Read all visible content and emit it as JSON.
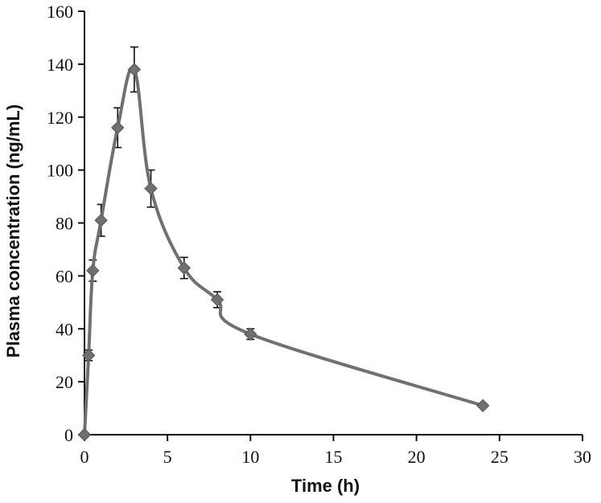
{
  "chart_data": {
    "type": "line",
    "xlabel": "Time (h)",
    "ylabel": "Plasma concentration (ng/mL)",
    "xlim": [
      0,
      30
    ],
    "ylim": [
      0,
      160
    ],
    "xticks": [
      0,
      5,
      10,
      15,
      20,
      25,
      30
    ],
    "yticks": [
      0,
      20,
      40,
      60,
      80,
      100,
      120,
      140,
      160
    ],
    "grid": false,
    "legend": "none",
    "series": [
      {
        "color": "#707070",
        "marker": "diamond",
        "x": [
          0,
          0.25,
          0.5,
          1,
          2,
          3,
          4,
          6,
          8,
          10,
          24
        ],
        "y": [
          0,
          30,
          62,
          81,
          116,
          138,
          93,
          63,
          51,
          38,
          11
        ],
        "error": [
          0,
          2,
          4,
          6,
          7.5,
          8.5,
          7,
          4,
          3,
          2,
          0
        ]
      }
    ]
  }
}
